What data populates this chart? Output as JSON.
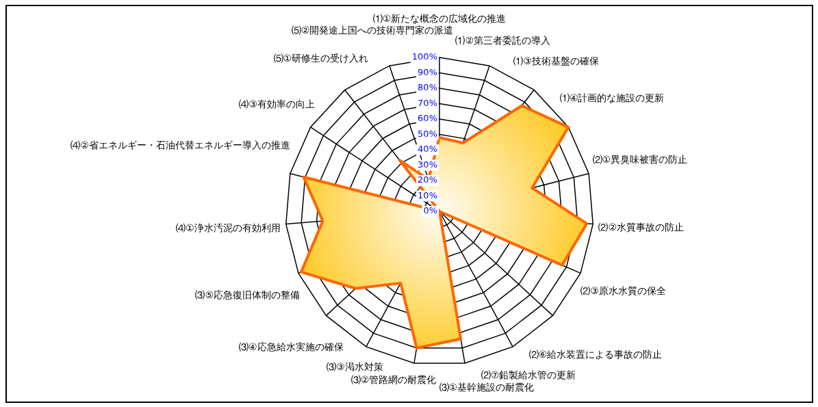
{
  "chart_data": {
    "type": "radar",
    "categories": [
      "⑴①新たな概念の広域化の推進",
      "⑴②第三者委託の導入",
      "⑴③技術基盤の確保",
      "⑴④計画的な施設の更新",
      "⑵①異臭味被害の防止",
      "⑵②水質事故の防止",
      "⑵③原水水質の保全",
      "⑵⑥給水装置による事故の防止",
      "⑵⑦鉛製給水管の更新",
      "⑶①基幹施設の耐震化",
      "⑶②管路網の耐震化",
      "⑶③渇水対策",
      "⑶④応急給水実施の確保",
      "⑶⑤応急復旧体制の整備",
      "⑷①浄水汚泥の有効利用",
      "⑷②省エネルギー・石油代替エネルギー導入の推進",
      "⑷③有効率の向上",
      "⑸①研修生の受け入れ",
      "⑸②開発途上国への技術専門家の派遣"
    ],
    "series": [
      {
        "color": "#ff6600",
        "values": [
          48,
          47,
          87,
          100,
          62,
          96,
          87,
          0,
          0,
          84,
          90,
          53,
          74,
          98,
          76,
          91,
          0,
          42,
          22
        ]
      }
    ],
    "ylim": [
      0,
      100
    ],
    "yticks": [
      {
        "value": 0,
        "label": "0%"
      },
      {
        "value": 10,
        "label": "10%"
      },
      {
        "value": 20,
        "label": "20%"
      },
      {
        "value": 30,
        "label": "30%"
      },
      {
        "value": 40,
        "label": "40%"
      },
      {
        "value": 50,
        "label": "50%"
      },
      {
        "value": 60,
        "label": "60%"
      },
      {
        "value": 70,
        "label": "70%"
      },
      {
        "value": 80,
        "label": "80%"
      },
      {
        "value": 90,
        "label": "90%"
      },
      {
        "value": 100,
        "label": "100%"
      }
    ],
    "grid": true,
    "legend": false
  }
}
